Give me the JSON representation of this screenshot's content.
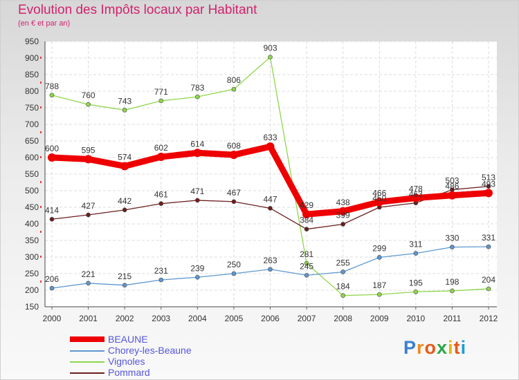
{
  "chart_data": {
    "type": "line",
    "title": "Evolution des Impôts locaux par Habitant",
    "subtitle": "(en € et par an)",
    "categories": [
      "2000",
      "2001",
      "2002",
      "2003",
      "2004",
      "2005",
      "2006",
      "2007",
      "2008",
      "2009",
      "2010",
      "2011",
      "2012"
    ],
    "ylim": [
      150,
      950
    ],
    "yticks": [
      150,
      200,
      250,
      300,
      350,
      400,
      450,
      500,
      550,
      600,
      650,
      700,
      750,
      800,
      850,
      900,
      950
    ],
    "grid": true,
    "legend_position": "bottom-left",
    "series": [
      {
        "name": "Vignoles",
        "color": "#8ed64a",
        "values": [
          788,
          760,
          743,
          771,
          783,
          806,
          903,
          281,
          184,
          187,
          195,
          198,
          204
        ]
      },
      {
        "name": "Chorey-les-Beaune",
        "color": "#5e97d0",
        "values": [
          206,
          221,
          215,
          231,
          239,
          250,
          263,
          245,
          255,
          299,
          311,
          330,
          331
        ]
      },
      {
        "name": "Pommard",
        "color": "#6b1e1e",
        "values": [
          414,
          427,
          442,
          461,
          471,
          467,
          447,
          384,
          399,
          450,
          463,
          503,
          513
        ]
      },
      {
        "name": "BEAUNE",
        "color": "#ee0000",
        "values": [
          600,
          595,
          574,
          602,
          614,
          608,
          633,
          429,
          438,
          466,
          478,
          486,
          493
        ]
      }
    ],
    "legend": [
      "BEAUNE",
      "Chorey-les-Beaune",
      "Vignoles",
      "Pommard"
    ]
  },
  "logo": {
    "letters": [
      "P",
      "r",
      "o",
      "x",
      "i",
      "t",
      "i"
    ],
    "colors": [
      "#3a7fd0",
      "#f08a1c",
      "#e85a1a",
      "#2aa845",
      "#e6b800",
      "#e85a1a",
      "#1f9bd6"
    ]
  }
}
